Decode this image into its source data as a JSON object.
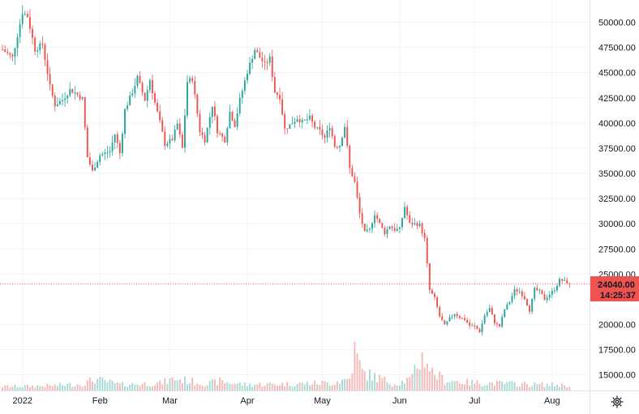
{
  "chart_data": {
    "type": "candlestick",
    "title": "",
    "xlabel": "",
    "ylabel": "",
    "ylim": [
      13000,
      52800
    ],
    "y_ticks": [
      "50000.00",
      "47500.00",
      "45000.00",
      "42500.00",
      "40000.00",
      "37500.00",
      "35000.00",
      "32500.00",
      "30000.00",
      "27500.00",
      "25000.00",
      "20000.00",
      "17500.00",
      "15000.00"
    ],
    "x_ticks": [
      {
        "label": "2022",
        "day": 1
      },
      {
        "label": "Feb",
        "day": 32
      },
      {
        "label": "Mar",
        "day": 60
      },
      {
        "label": "Apr",
        "day": 91
      },
      {
        "label": "May",
        "day": 121
      },
      {
        "label": "Jun",
        "day": 152
      },
      {
        "label": "Jul",
        "day": 182
      },
      {
        "label": "Aug",
        "day": 213
      }
    ],
    "x_range_days": [
      -8,
      228
    ],
    "current_price": {
      "value": "24040.00",
      "countdown": "14:25:37",
      "price": 24040
    },
    "grid": true,
    "colors": {
      "up": "#26a69a",
      "down": "#ef5350",
      "price_line": "#ef5350",
      "grid": "#f0f3fa",
      "axis": "#e0e3eb",
      "text": "#131722",
      "vol_up": "#a8dad5",
      "vol_down": "#f5b8b6"
    },
    "close_anchors": [
      [
        -7,
        47300
      ],
      [
        -3,
        46500
      ],
      [
        1,
        51000
      ],
      [
        3,
        50600
      ],
      [
        6,
        47300
      ],
      [
        9,
        47800
      ],
      [
        12,
        43600
      ],
      [
        14,
        41800
      ],
      [
        17,
        42300
      ],
      [
        20,
        43300
      ],
      [
        22,
        43000
      ],
      [
        25,
        42400
      ],
      [
        27,
        36600
      ],
      [
        29,
        35200
      ],
      [
        32,
        36800
      ],
      [
        36,
        37200
      ],
      [
        38,
        38900
      ],
      [
        40,
        37000
      ],
      [
        42,
        41300
      ],
      [
        45,
        43100
      ],
      [
        47,
        44500
      ],
      [
        50,
        42300
      ],
      [
        52,
        44300
      ],
      [
        54,
        42000
      ],
      [
        56,
        40100
      ],
      [
        58,
        37900
      ],
      [
        61,
        38400
      ],
      [
        63,
        39900
      ],
      [
        65,
        37500
      ],
      [
        67,
        44100
      ],
      [
        69,
        44400
      ],
      [
        72,
        39200
      ],
      [
        74,
        38300
      ],
      [
        77,
        41800
      ],
      [
        79,
        39200
      ],
      [
        82,
        38300
      ],
      [
        84,
        41100
      ],
      [
        86,
        39800
      ],
      [
        88,
        42300
      ],
      [
        91,
        45100
      ],
      [
        94,
        47300
      ],
      [
        96,
        46500
      ],
      [
        98,
        45800
      ],
      [
        100,
        46400
      ],
      [
        102,
        43100
      ],
      [
        104,
        42600
      ],
      [
        106,
        39400
      ],
      [
        108,
        39800
      ],
      [
        111,
        40500
      ],
      [
        113,
        40100
      ],
      [
        116,
        40500
      ],
      [
        118,
        39600
      ],
      [
        120,
        39200
      ],
      [
        122,
        38500
      ],
      [
        124,
        39700
      ],
      [
        126,
        37700
      ],
      [
        128,
        37800
      ],
      [
        130,
        39700
      ],
      [
        132,
        35500
      ],
      [
        134,
        34100
      ],
      [
        136,
        31000
      ],
      [
        138,
        29100
      ],
      [
        140,
        29400
      ],
      [
        142,
        31000
      ],
      [
        144,
        30000
      ],
      [
        146,
        29100
      ],
      [
        148,
        29800
      ],
      [
        150,
        29400
      ],
      [
        152,
        29500
      ],
      [
        154,
        31700
      ],
      [
        156,
        30000
      ],
      [
        158,
        30000
      ],
      [
        160,
        29900
      ],
      [
        162,
        28500
      ],
      [
        164,
        23400
      ],
      [
        166,
        22600
      ],
      [
        168,
        20800
      ],
      [
        170,
        19900
      ],
      [
        172,
        20600
      ],
      [
        174,
        21100
      ],
      [
        176,
        20700
      ],
      [
        178,
        20500
      ],
      [
        180,
        19900
      ],
      [
        182,
        19800
      ],
      [
        184,
        19300
      ],
      [
        186,
        20900
      ],
      [
        188,
        21600
      ],
      [
        190,
        20200
      ],
      [
        192,
        19800
      ],
      [
        194,
        21500
      ],
      [
        196,
        22300
      ],
      [
        198,
        23400
      ],
      [
        200,
        23300
      ],
      [
        202,
        22600
      ],
      [
        204,
        21400
      ],
      [
        206,
        23500
      ],
      [
        208,
        23300
      ],
      [
        210,
        22500
      ],
      [
        212,
        23000
      ],
      [
        214,
        23500
      ],
      [
        216,
        24400
      ],
      [
        218,
        24300
      ],
      [
        220,
        24040
      ]
    ],
    "volume_profile": [
      [
        -7,
        0.3
      ],
      [
        10,
        0.35
      ],
      [
        25,
        0.5
      ],
      [
        30,
        0.85
      ],
      [
        40,
        0.45
      ],
      [
        56,
        0.55
      ],
      [
        62,
        0.9
      ],
      [
        75,
        0.5
      ],
      [
        80,
        0.7
      ],
      [
        90,
        0.45
      ],
      [
        110,
        0.5
      ],
      [
        125,
        0.6
      ],
      [
        132,
        0.9
      ],
      [
        134,
        3.0
      ],
      [
        137,
        1.4
      ],
      [
        150,
        0.5
      ],
      [
        157,
        0.9
      ],
      [
        158,
        1.6
      ],
      [
        160,
        2.3
      ],
      [
        162,
        2.6
      ],
      [
        165,
        1.4
      ],
      [
        170,
        0.8
      ],
      [
        180,
        0.6
      ],
      [
        200,
        0.5
      ],
      [
        210,
        0.45
      ],
      [
        220,
        0.4
      ]
    ]
  }
}
